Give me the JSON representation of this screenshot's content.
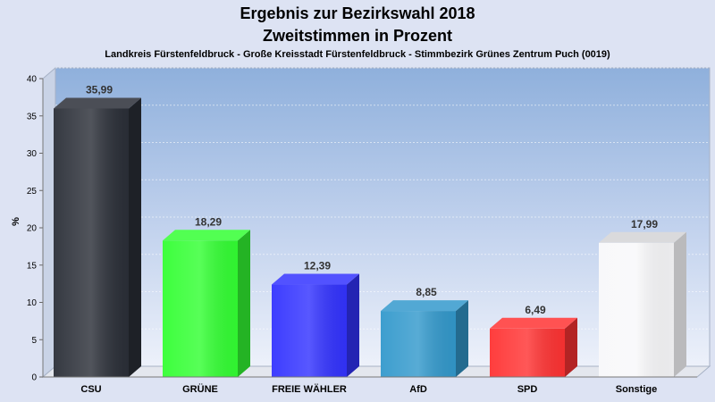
{
  "chart_data": {
    "type": "bar",
    "title": "Ergebnis zur Bezirkswahl 2018",
    "title_line2": "Zweitstimmen in Prozent",
    "subtitle": "Landkreis Fürstenfeldbruck - Große Kreisstadt Fürstenfeldbruck - Stimmbezirk Grünes Zentrum Puch (0019)",
    "ylabel": "%",
    "xlabel": "",
    "ylim": [
      0,
      40
    ],
    "yticks": [
      "0",
      "5",
      "10",
      "15",
      "20",
      "25",
      "30",
      "35",
      "40"
    ],
    "grid": true,
    "categories": [
      "CSU",
      "GRÜNE",
      "FREIE WÄHLER",
      "AfD",
      "SPD",
      "Sonstige"
    ],
    "values": [
      35.99,
      18.29,
      12.39,
      8.85,
      6.49,
      17.99
    ],
    "value_labels": [
      "35,99",
      "18,29",
      "12,39",
      "8,85",
      "6,49",
      "17,99"
    ],
    "colors": [
      "#2b2f38",
      "#33ff33",
      "#3333ff",
      "#3399cc",
      "#ff3333",
      "#f8f8fa"
    ]
  }
}
